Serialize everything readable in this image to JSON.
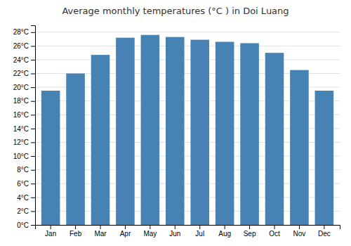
{
  "chart_data": {
    "type": "bar",
    "title": "Average monthly temperatures (°C ) in Doi Luang",
    "categories": [
      "Jan",
      "Feb",
      "Mar",
      "Apr",
      "May",
      "Jun",
      "Jul",
      "Aug",
      "Sep",
      "Oct",
      "Nov",
      "Dec"
    ],
    "values": [
      19.5,
      22.0,
      24.7,
      27.2,
      27.6,
      27.3,
      26.9,
      26.6,
      26.4,
      25.0,
      22.5,
      19.5
    ],
    "ylim": [
      0,
      29
    ],
    "yticks": [
      {
        "value": 0,
        "label": "0°C"
      },
      {
        "value": 2,
        "label": "2°C"
      },
      {
        "value": 4,
        "label": "4°C"
      },
      {
        "value": 6,
        "label": "6°C"
      },
      {
        "value": 8,
        "label": "8°C"
      },
      {
        "value": 10,
        "label": "10°C"
      },
      {
        "value": 12,
        "label": "12°C"
      },
      {
        "value": 14,
        "label": "14°C"
      },
      {
        "value": 16,
        "label": "16°C"
      },
      {
        "value": 18,
        "label": "18°C"
      },
      {
        "value": 20,
        "label": "20°C"
      },
      {
        "value": 22,
        "label": "22°C"
      },
      {
        "value": 24,
        "label": "24°C"
      },
      {
        "value": 26,
        "label": "26°C"
      },
      {
        "value": 28,
        "label": "28°C"
      }
    ],
    "grid": true
  }
}
